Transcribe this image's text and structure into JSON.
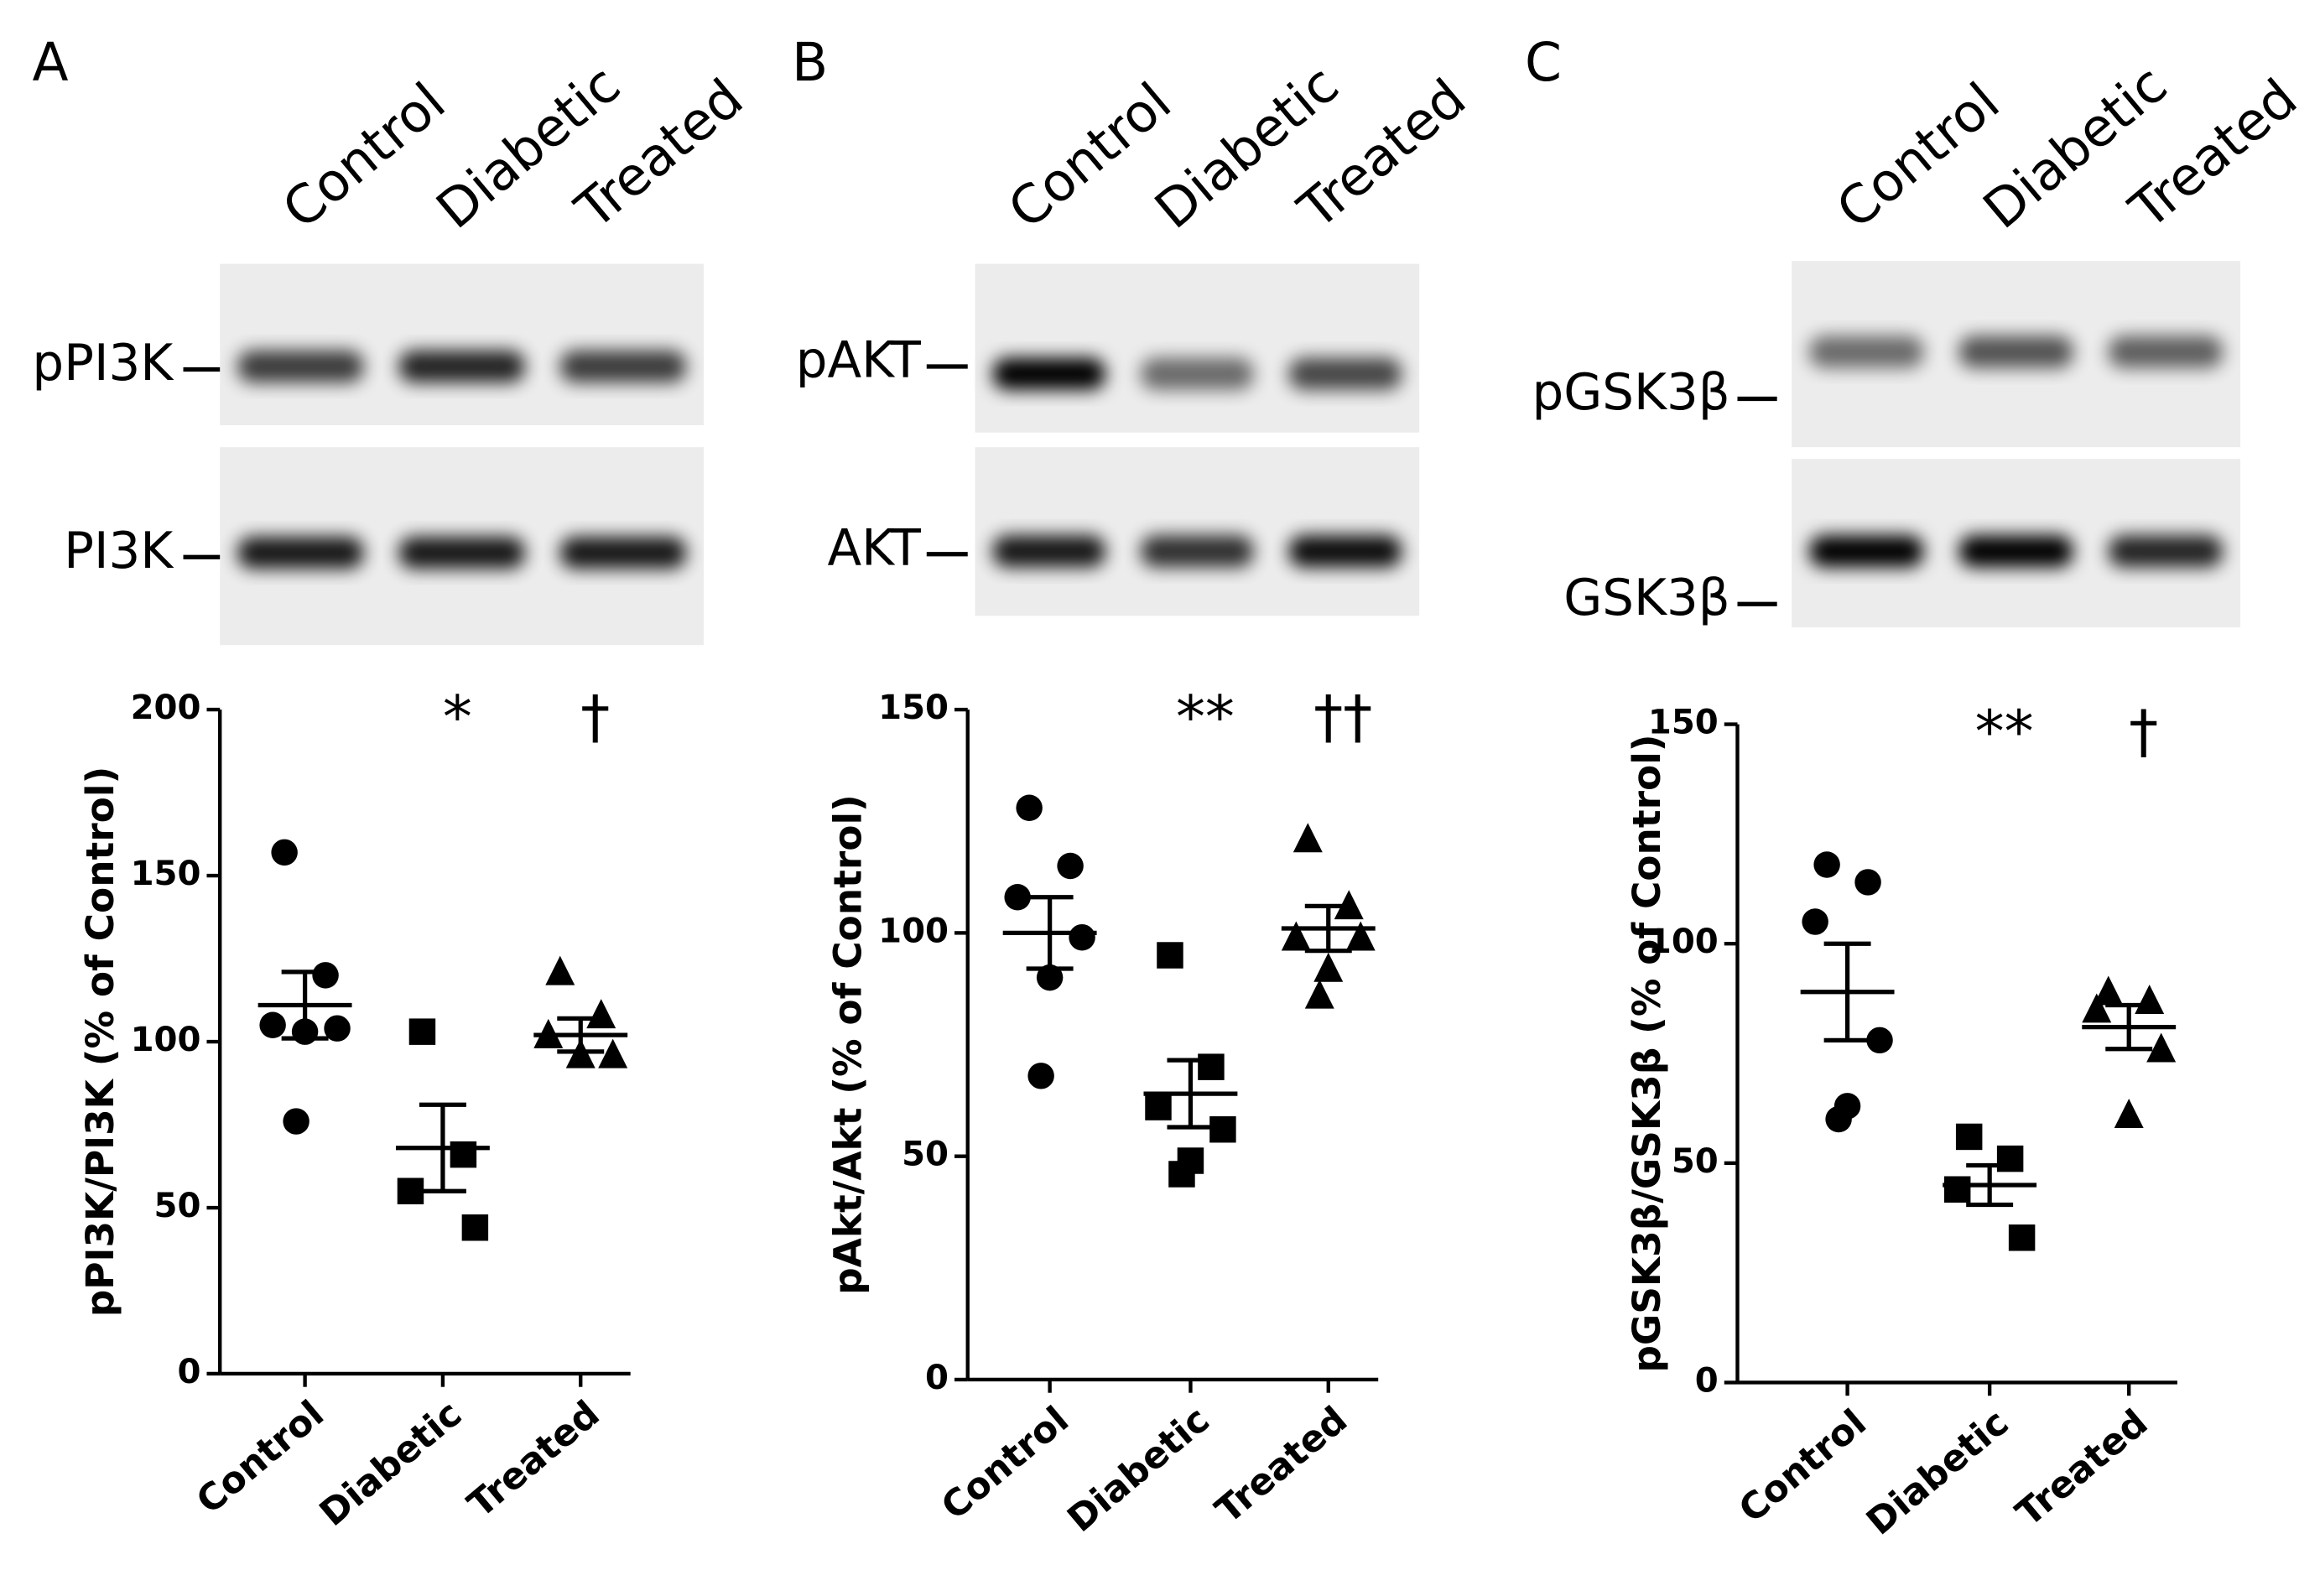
{
  "chart_data": [
    {
      "type": "scatter",
      "panel": "A",
      "blot_lanes": [
        "Control",
        "Diabetic",
        "Treated"
      ],
      "blot_labels": [
        "pPI3K",
        "PI3K"
      ],
      "ylabel": "pPI3K/PI3K (% of Control)",
      "categories": [
        "Control",
        "Diabetic",
        "Treated"
      ],
      "markers": [
        "circle",
        "square",
        "triangle"
      ],
      "color": "#000000",
      "values": [
        [
          157,
          120,
          105,
          104,
          103,
          76
        ],
        [
          103,
          66,
          55,
          44
        ],
        [
          121,
          108,
          102,
          96,
          96
        ]
      ],
      "means": [
        111,
        68,
        102
      ],
      "errors": [
        10,
        13,
        5
      ],
      "annotations": [
        null,
        "*",
        "†"
      ],
      "ylim": [
        0,
        200
      ],
      "yticks": [
        0,
        50,
        100,
        150,
        200
      ]
    },
    {
      "type": "scatter",
      "panel": "B",
      "blot_lanes": [
        "Control",
        "Diabetic",
        "Treated"
      ],
      "blot_labels": [
        "pAKT",
        "AKT"
      ],
      "ylabel": "pAkt/Akt (% of Control)",
      "categories": [
        "Control",
        "Diabetic",
        "Treated"
      ],
      "markers": [
        "circle",
        "square",
        "triangle"
      ],
      "color": "#000000",
      "values": [
        [
          128,
          115,
          108,
          99,
          90,
          68
        ],
        [
          95,
          70,
          61,
          56,
          49,
          46
        ],
        [
          121,
          106,
          99,
          99,
          92,
          86
        ]
      ],
      "means": [
        100,
        64,
        101
      ],
      "errors": [
        8,
        7.5,
        5
      ],
      "annotations": [
        null,
        "**",
        "††"
      ],
      "ylim": [
        0,
        150
      ],
      "yticks": [
        0,
        50,
        100,
        150
      ]
    },
    {
      "type": "scatter",
      "panel": "C",
      "blot_lanes": [
        "Control",
        "Diabetic",
        "Treated"
      ],
      "blot_labels": [
        "pGSK3β",
        "GSK3β"
      ],
      "ylabel": "pGSK3β/GSK3β (% of Control)",
      "categories": [
        "Control",
        "Diabetic",
        "Treated"
      ],
      "markers": [
        "circle",
        "square",
        "triangle"
      ],
      "color": "#000000",
      "values": [
        [
          118,
          114,
          105,
          78,
          63,
          60
        ],
        [
          56,
          51,
          44,
          33
        ],
        [
          89,
          87,
          85,
          76,
          61
        ]
      ],
      "means": [
        89,
        45,
        81
      ],
      "errors": [
        11,
        4.5,
        5
      ],
      "annotations": [
        null,
        "**",
        "†"
      ],
      "ylim": [
        0,
        150
      ],
      "yticks": [
        0,
        50,
        100,
        150
      ]
    }
  ]
}
